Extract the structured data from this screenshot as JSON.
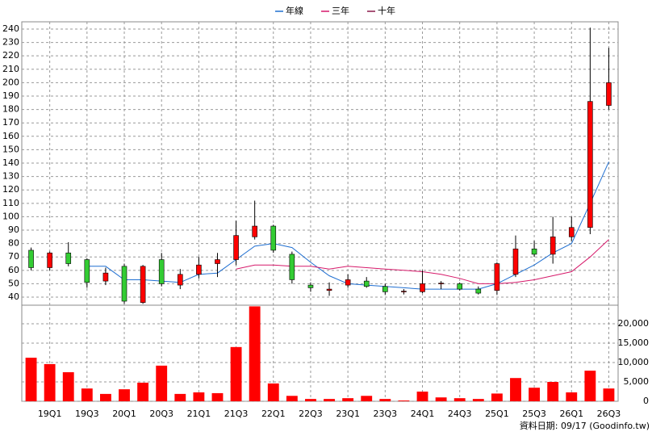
{
  "chart_data": {
    "type": "candlestick",
    "categories": [
      null,
      "19Q1",
      null,
      "19Q3",
      null,
      "20Q1",
      null,
      "20Q3",
      null,
      "21Q1",
      null,
      "21Q3",
      null,
      "22Q1",
      null,
      "22Q3",
      null,
      "23Q1",
      null,
      "23Q3",
      null,
      "24Q1",
      null,
      "24Q3",
      null,
      "25Q1",
      null,
      "25Q3",
      null,
      "26Q1",
      null,
      "26Q3"
    ],
    "open": [
      75,
      62,
      73,
      68,
      52,
      63,
      36,
      68,
      49,
      57,
      65,
      68,
      85,
      93,
      72,
      49,
      45,
      49,
      52,
      48,
      44,
      44,
      50,
      50,
      46,
      45,
      57,
      76,
      72,
      85,
      92,
      183
    ],
    "high": [
      77,
      74,
      81,
      69,
      62,
      65,
      64,
      73,
      61,
      70,
      73,
      97,
      112,
      94,
      74,
      51,
      51,
      57,
      55,
      50,
      46,
      60,
      52,
      51,
      48,
      66,
      86,
      82,
      100,
      100,
      241,
      226
    ],
    "low": [
      60,
      60,
      63,
      47,
      49,
      35,
      35,
      48,
      46,
      54,
      55,
      64,
      83,
      73,
      50,
      44,
      41,
      47,
      47,
      42,
      42,
      43,
      46,
      45,
      42,
      42,
      55,
      70,
      65,
      82,
      87,
      180
    ],
    "close": [
      62,
      73,
      65,
      51,
      58,
      37,
      63,
      50,
      57,
      64,
      68,
      86,
      93,
      75,
      53,
      47,
      46,
      53,
      48,
      44,
      44.5,
      50,
      50.5,
      46,
      43,
      65,
      76,
      72,
      85,
      92,
      186,
      200
    ],
    "up_color": "#ff0000",
    "down_color": "#33cc33",
    "series": [
      {
        "name": "年線",
        "color": "#1f6fd1",
        "values": [
          null,
          null,
          null,
          63,
          63,
          53,
          53,
          52,
          51,
          57,
          58,
          68,
          78,
          80,
          77,
          66,
          56,
          50,
          49,
          48,
          47,
          46,
          46,
          46,
          46,
          50,
          57,
          64,
          73,
          80,
          110,
          141
        ]
      },
      {
        "name": "三年",
        "color": "#d6196a",
        "values": [
          null,
          null,
          null,
          null,
          null,
          null,
          null,
          null,
          null,
          null,
          null,
          61,
          64,
          64,
          63,
          63,
          61,
          63,
          62,
          61,
          60,
          59,
          57,
          54,
          50,
          50,
          51,
          53,
          56,
          59,
          70,
          83
        ]
      },
      {
        "name": "十年",
        "color": "#8b1a4a",
        "values": [
          null,
          null,
          null,
          null,
          null,
          null,
          null,
          null,
          null,
          null,
          null,
          null,
          null,
          null,
          null,
          null,
          null,
          null,
          null,
          null,
          null,
          null,
          null,
          null,
          null,
          null,
          null,
          null,
          null,
          null,
          null,
          null
        ]
      }
    ],
    "ylim": [
      34,
      245.4
    ],
    "yticks": [
      40,
      50,
      60,
      70,
      80,
      90,
      100,
      110,
      120,
      130,
      140,
      150,
      160,
      170,
      180,
      190,
      200,
      210,
      220,
      230,
      240
    ],
    "grid": true,
    "volume": {
      "color": "#ff0000",
      "values": [
        11250,
        9600,
        7500,
        3300,
        1900,
        3100,
        4800,
        9200,
        1900,
        2300,
        2100,
        14000,
        24500,
        4600,
        1400,
        600,
        600,
        800,
        1400,
        600,
        200,
        2500,
        1000,
        800,
        600,
        2000,
        6000,
        3500,
        5000,
        2300,
        7900,
        3300
      ],
      "ylim": [
        0,
        24800
      ],
      "yticks": [
        0,
        {
          "value": 5000,
          "label": "5,000"
        },
        {
          "value": 10000,
          "label": "10,000"
        },
        {
          "value": 15000,
          "label": "15,000"
        },
        {
          "value": 20000,
          "label": "20,000"
        }
      ]
    },
    "source": "資料日期: 09/17  (Goodinfo.tw)"
  }
}
